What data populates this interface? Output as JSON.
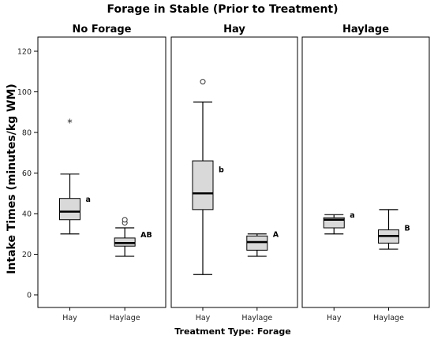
{
  "chart_data": {
    "type": "boxplot",
    "title": "Forage in Stable (Prior to Treatment)",
    "ylabel": "Intake Times (minutes/kg WM)",
    "xlabel": "Treatment Type: Forage",
    "ylim": [
      -5,
      126
    ],
    "yticks": [
      0,
      20,
      40,
      60,
      80,
      100,
      120
    ],
    "ytick_labels": [
      "0",
      "20",
      "40",
      "60",
      "80",
      "100",
      "120"
    ],
    "categories": [
      "Hay",
      "Haylage"
    ],
    "box_fill": "#d9d9d9",
    "panels": [
      {
        "title": "No Forage",
        "boxes": [
          {
            "category": "Hay",
            "whisker_low": 30,
            "q1": 37,
            "median": 41,
            "q3": 47.5,
            "whisker_high": 59.5,
            "outliers": [
              {
                "value": 86,
                "marker": "*"
              }
            ],
            "label": "a"
          },
          {
            "category": "Haylage",
            "whisker_low": 19,
            "q1": 24,
            "median": 25.5,
            "q3": 28,
            "whisker_high": 33,
            "outliers": [
              {
                "value": 35.5,
                "marker": "o"
              },
              {
                "value": 37,
                "marker": "o"
              }
            ],
            "label": "AB"
          }
        ]
      },
      {
        "title": "Hay",
        "boxes": [
          {
            "category": "Hay",
            "whisker_low": 10,
            "q1": 42,
            "median": 50,
            "q3": 66,
            "whisker_high": 95,
            "outliers": [
              {
                "value": 105,
                "marker": "o"
              }
            ],
            "label": "b"
          },
          {
            "category": "Haylage",
            "whisker_low": 19,
            "q1": 22,
            "median": 26,
            "q3": 29,
            "whisker_high": 30,
            "outliers": [],
            "label": "A"
          }
        ]
      },
      {
        "title": "Haylage",
        "boxes": [
          {
            "category": "Hay",
            "whisker_low": 30,
            "q1": 33,
            "median": 37,
            "q3": 38,
            "whisker_high": 39.5,
            "outliers": [],
            "label": "a"
          },
          {
            "category": "Haylage",
            "whisker_low": 22.5,
            "q1": 25.5,
            "median": 29,
            "q3": 32,
            "whisker_high": 42,
            "outliers": [],
            "label": "B"
          }
        ]
      }
    ]
  }
}
